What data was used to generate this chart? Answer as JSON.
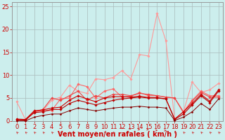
{
  "background_color": "#cceeed",
  "grid_color": "#aabbbb",
  "xlabel": "Vent moyen/en rafales ( km/h )",
  "xlabel_color": "#cc0000",
  "xlabel_fontsize": 7,
  "tick_color": "#cc0000",
  "tick_fontsize": 6,
  "xlim": [
    -0.5,
    23.5
  ],
  "ylim": [
    0,
    26
  ],
  "yticks": [
    0,
    5,
    10,
    15,
    20,
    25
  ],
  "xticks": [
    0,
    1,
    2,
    3,
    4,
    5,
    6,
    7,
    8,
    9,
    10,
    11,
    12,
    13,
    14,
    15,
    16,
    17,
    18,
    19,
    20,
    21,
    22,
    23
  ],
  "series": [
    {
      "y": [
        4.2,
        0.3,
        2.0,
        2.3,
        4.5,
        5.2,
        7.8,
        6.5,
        6.0,
        9.2,
        9.0,
        9.5,
        11.0,
        9.2,
        14.5,
        14.2,
        23.5,
        17.5,
        0.3,
        2.0,
        8.5,
        6.2,
        6.8,
        8.2
      ],
      "color": "#ff9999",
      "marker": "D",
      "markersize": 1.8,
      "linewidth": 0.8
    },
    {
      "y": [
        0.3,
        0.2,
        2.1,
        2.2,
        2.3,
        4.8,
        5.0,
        8.0,
        7.5,
        5.0,
        6.5,
        7.0,
        5.2,
        5.4,
        6.2,
        5.5,
        5.5,
        5.2,
        5.0,
        2.0,
        4.5,
        6.5,
        5.5,
        5.5
      ],
      "color": "#ff6666",
      "marker": "D",
      "markersize": 1.8,
      "linewidth": 0.8
    },
    {
      "y": [
        0.2,
        0.1,
        2.0,
        2.5,
        5.0,
        4.5,
        5.5,
        6.5,
        4.5,
        5.5,
        5.0,
        5.8,
        5.8,
        5.5,
        6.0,
        5.8,
        5.5,
        5.2,
        5.0,
        1.8,
        4.3,
        6.2,
        5.2,
        5.2
      ],
      "color": "#ee4444",
      "marker": "D",
      "markersize": 1.8,
      "linewidth": 0.8
    },
    {
      "y": [
        0.4,
        0.3,
        2.2,
        2.4,
        2.8,
        3.0,
        4.5,
        5.5,
        4.8,
        4.2,
        5.0,
        5.3,
        5.3,
        5.2,
        5.4,
        5.1,
        5.1,
        4.8,
        0.4,
        2.0,
        3.8,
        5.8,
        4.3,
        6.8
      ],
      "color": "#cc0000",
      "marker": "D",
      "markersize": 1.8,
      "linewidth": 0.8
    },
    {
      "y": [
        0.3,
        0.2,
        1.8,
        2.0,
        2.5,
        2.5,
        3.8,
        4.5,
        4.0,
        3.5,
        4.0,
        4.5,
        4.8,
        5.0,
        5.2,
        5.0,
        5.0,
        4.8,
        0.3,
        1.5,
        3.5,
        5.5,
        4.0,
        6.5
      ],
      "color": "#bb0000",
      "marker": "D",
      "markersize": 1.8,
      "linewidth": 0.8
    },
    {
      "y": [
        0.0,
        0.0,
        0.8,
        1.2,
        1.5,
        1.5,
        2.2,
        2.8,
        2.5,
        2.2,
        2.5,
        2.8,
        3.0,
        3.0,
        3.2,
        3.0,
        3.0,
        2.8,
        0.1,
        0.8,
        2.0,
        3.8,
        2.5,
        4.8
      ],
      "color": "#880000",
      "marker": "D",
      "markersize": 1.5,
      "linewidth": 0.7
    }
  ],
  "wind_arrows": {
    "angles_deg": [
      225,
      225,
      225,
      225,
      225,
      225,
      225,
      225,
      225,
      225,
      225,
      225,
      45,
      60,
      75,
      75,
      90,
      90,
      225,
      225,
      225,
      225,
      225,
      225
    ]
  }
}
